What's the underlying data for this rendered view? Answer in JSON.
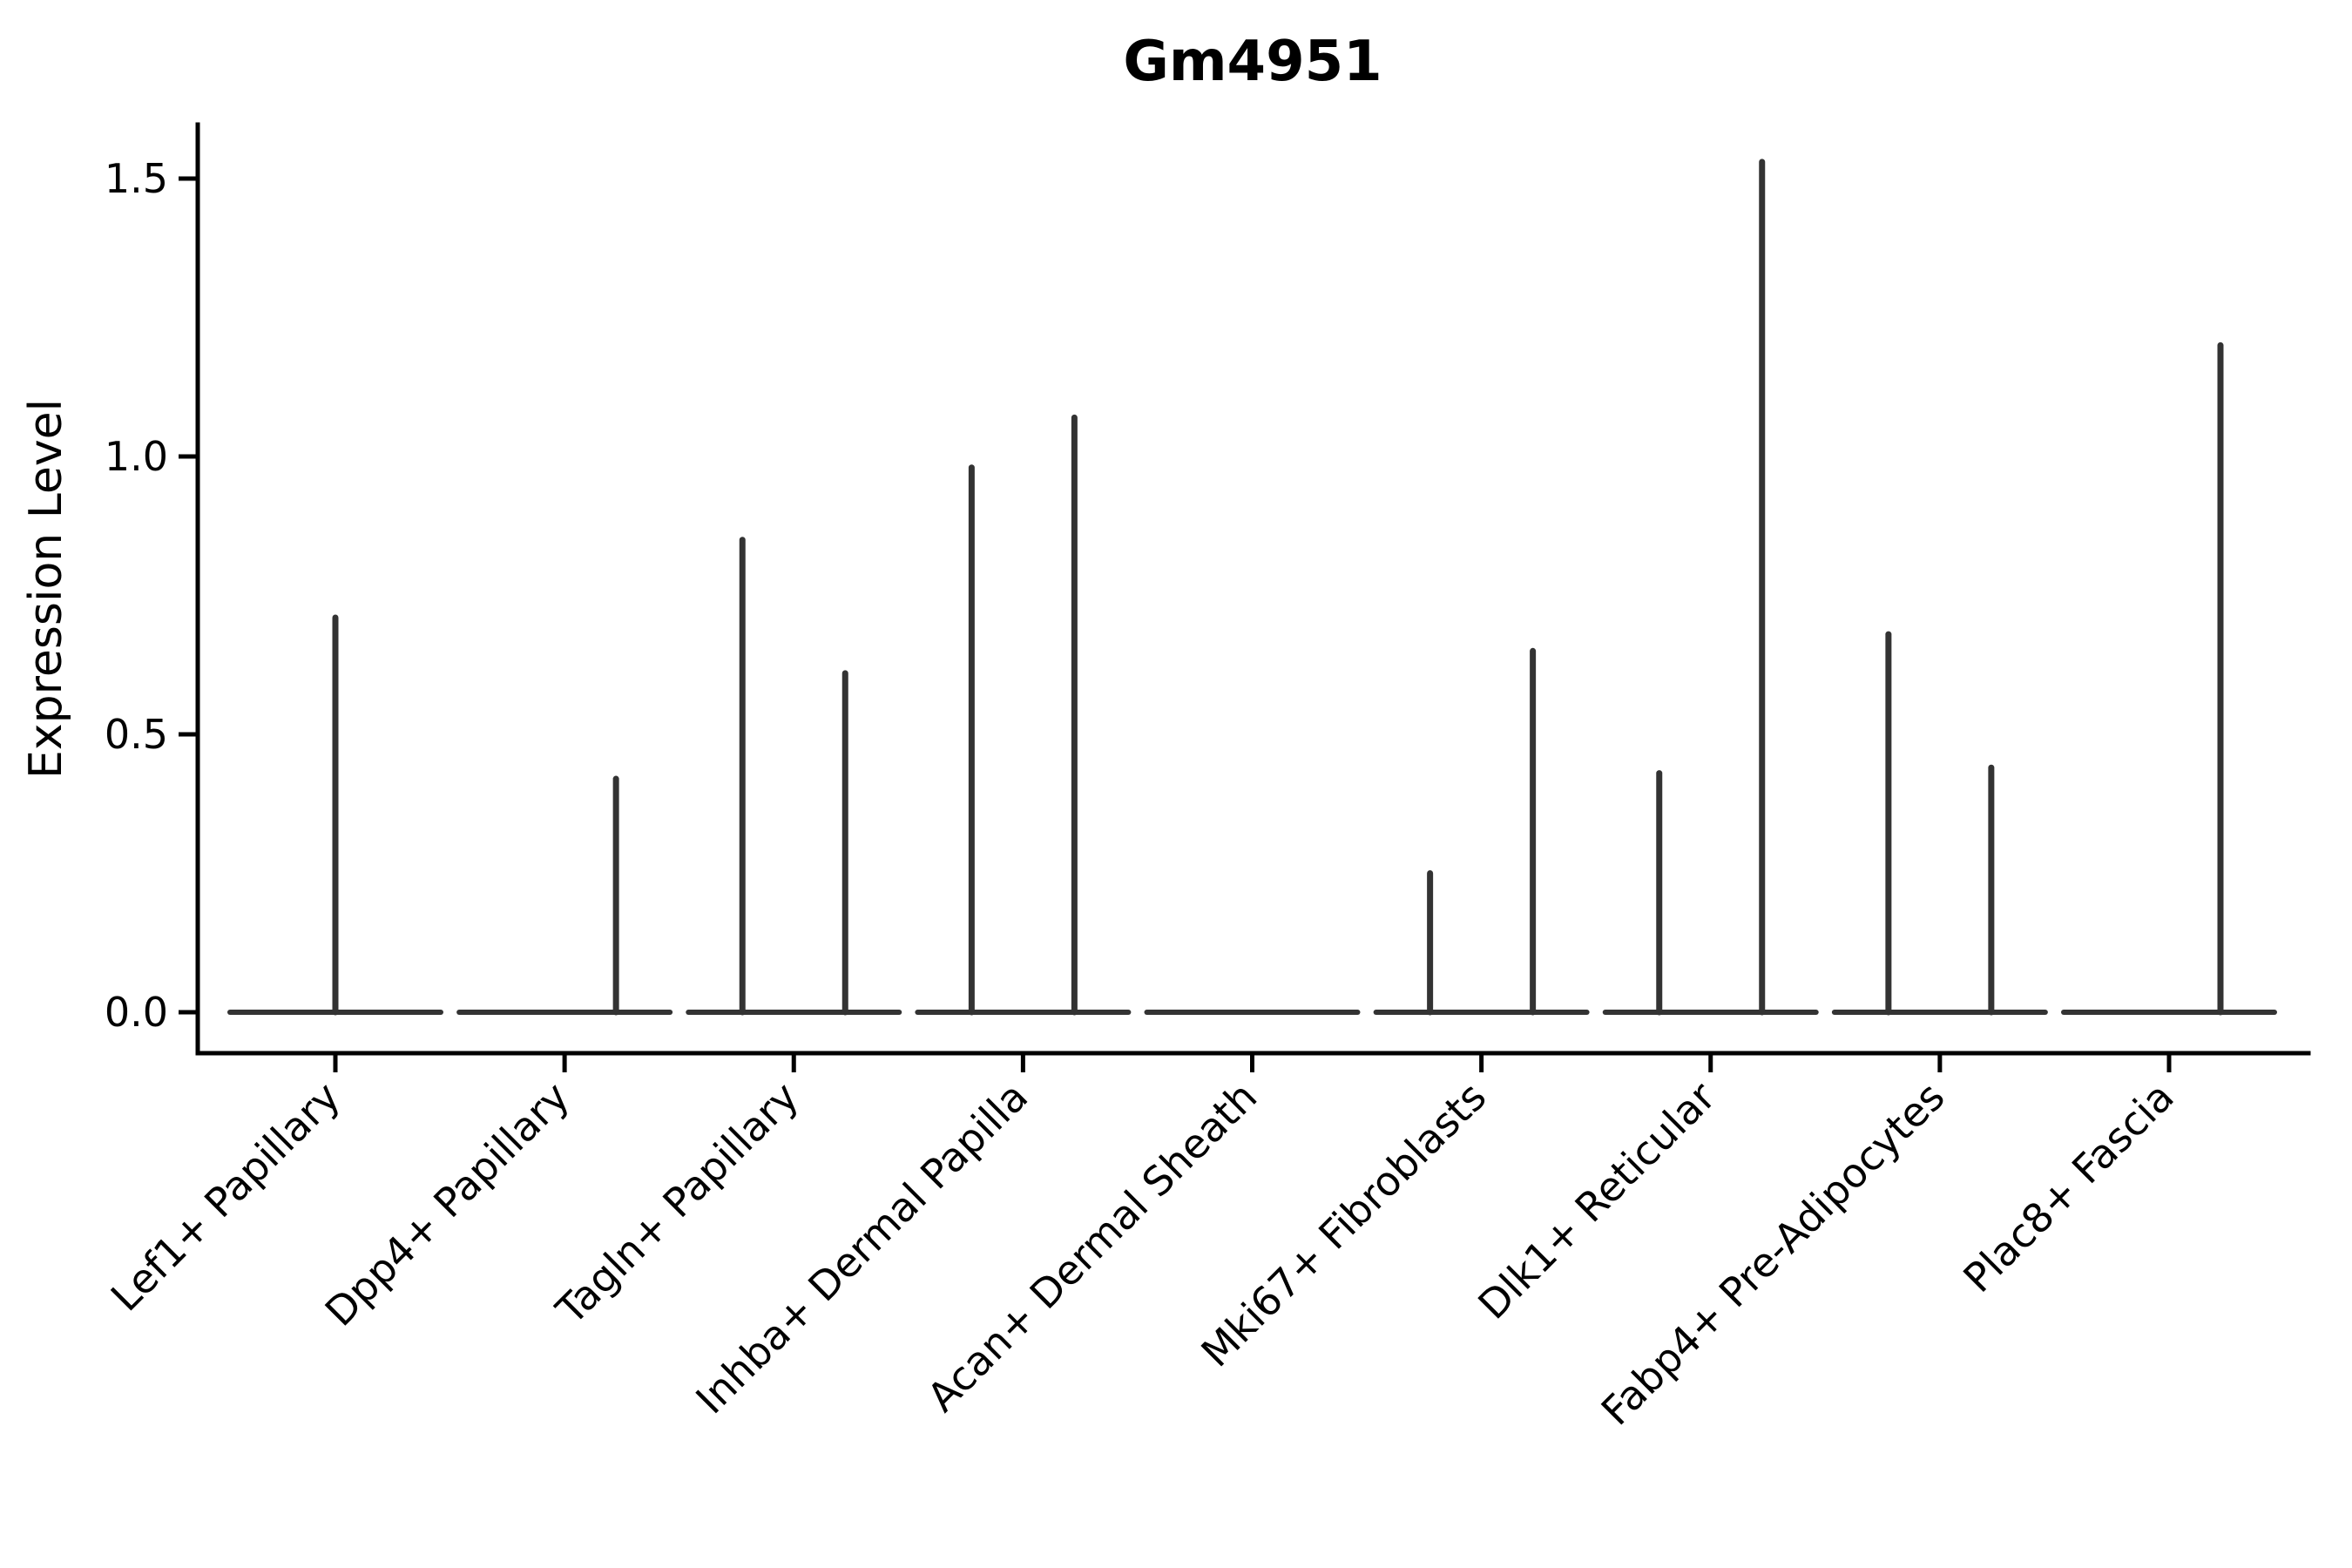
{
  "title": "Gm4951",
  "axes": {
    "ylabel": "Expression Level",
    "ytick_labels": [
      "0.0",
      "0.5",
      "1.0",
      "1.5"
    ]
  },
  "chart_data": {
    "type": "violin",
    "title": "Gm4951",
    "xlabel": "",
    "ylabel": "Expression Level",
    "ylim": [
      -0.07,
      1.6
    ],
    "yticks": [
      0.0,
      0.5,
      1.0,
      1.5
    ],
    "ytick_labels": [
      "0.0",
      "0.5",
      "1.0",
      "1.5"
    ],
    "grid": false,
    "legend": "none",
    "categories": [
      "Lef1+ Papillary",
      "Dpp4+ Papillary",
      "Tagln+ Papillary",
      "Inhba+ Dermal Papilla",
      "Acan+ Dermal Sheath",
      "Mki67+ Fibroblasts",
      "Dlk1+ Reticular",
      "Fabp4+ Pre-Adipocytes",
      "Plac8+ Fascia"
    ],
    "description": "Violin plot of Gm4951 expression per fibroblast cluster; violins are collapsed to flat baselines at 0 with thin vertical spikes marking maximum expression values",
    "violins": [
      {
        "category": "Lef1+ Papillary",
        "baseline_value": 0,
        "spikes": [
          {
            "side": "center",
            "value": 0.71
          }
        ]
      },
      {
        "category": "Dpp4+ Papillary",
        "baseline_value": 0,
        "spikes": [
          {
            "side": "right",
            "value": 0.42
          }
        ]
      },
      {
        "category": "Tagln+ Papillary",
        "baseline_value": 0,
        "spikes": [
          {
            "side": "left",
            "value": 0.85
          },
          {
            "side": "right",
            "value": 0.61
          }
        ]
      },
      {
        "category": "Inhba+ Dermal Papilla",
        "baseline_value": 0,
        "spikes": [
          {
            "side": "left",
            "value": 0.98
          },
          {
            "side": "right",
            "value": 1.07
          }
        ]
      },
      {
        "category": "Acan+ Dermal Sheath",
        "baseline_value": 0,
        "spikes": []
      },
      {
        "category": "Mki67+ Fibroblasts",
        "baseline_value": 0,
        "spikes": [
          {
            "side": "left",
            "value": 0.25
          },
          {
            "side": "right",
            "value": 0.65
          }
        ]
      },
      {
        "category": "Dlk1+ Reticular",
        "baseline_value": 0,
        "spikes": [
          {
            "side": "left",
            "value": 0.43
          },
          {
            "side": "right",
            "value": 1.53
          }
        ]
      },
      {
        "category": "Fabp4+ Pre-Adipocytes",
        "baseline_value": 0,
        "spikes": [
          {
            "side": "left",
            "value": 0.68
          },
          {
            "side": "right",
            "value": 0.44
          }
        ]
      },
      {
        "category": "Plac8+ Fascia",
        "baseline_value": 0,
        "spikes": [
          {
            "side": "right",
            "value": 1.2
          }
        ]
      }
    ],
    "colors": {
      "violin_stroke": "#333333",
      "axis": "#000000",
      "background": "#ffffff"
    }
  }
}
